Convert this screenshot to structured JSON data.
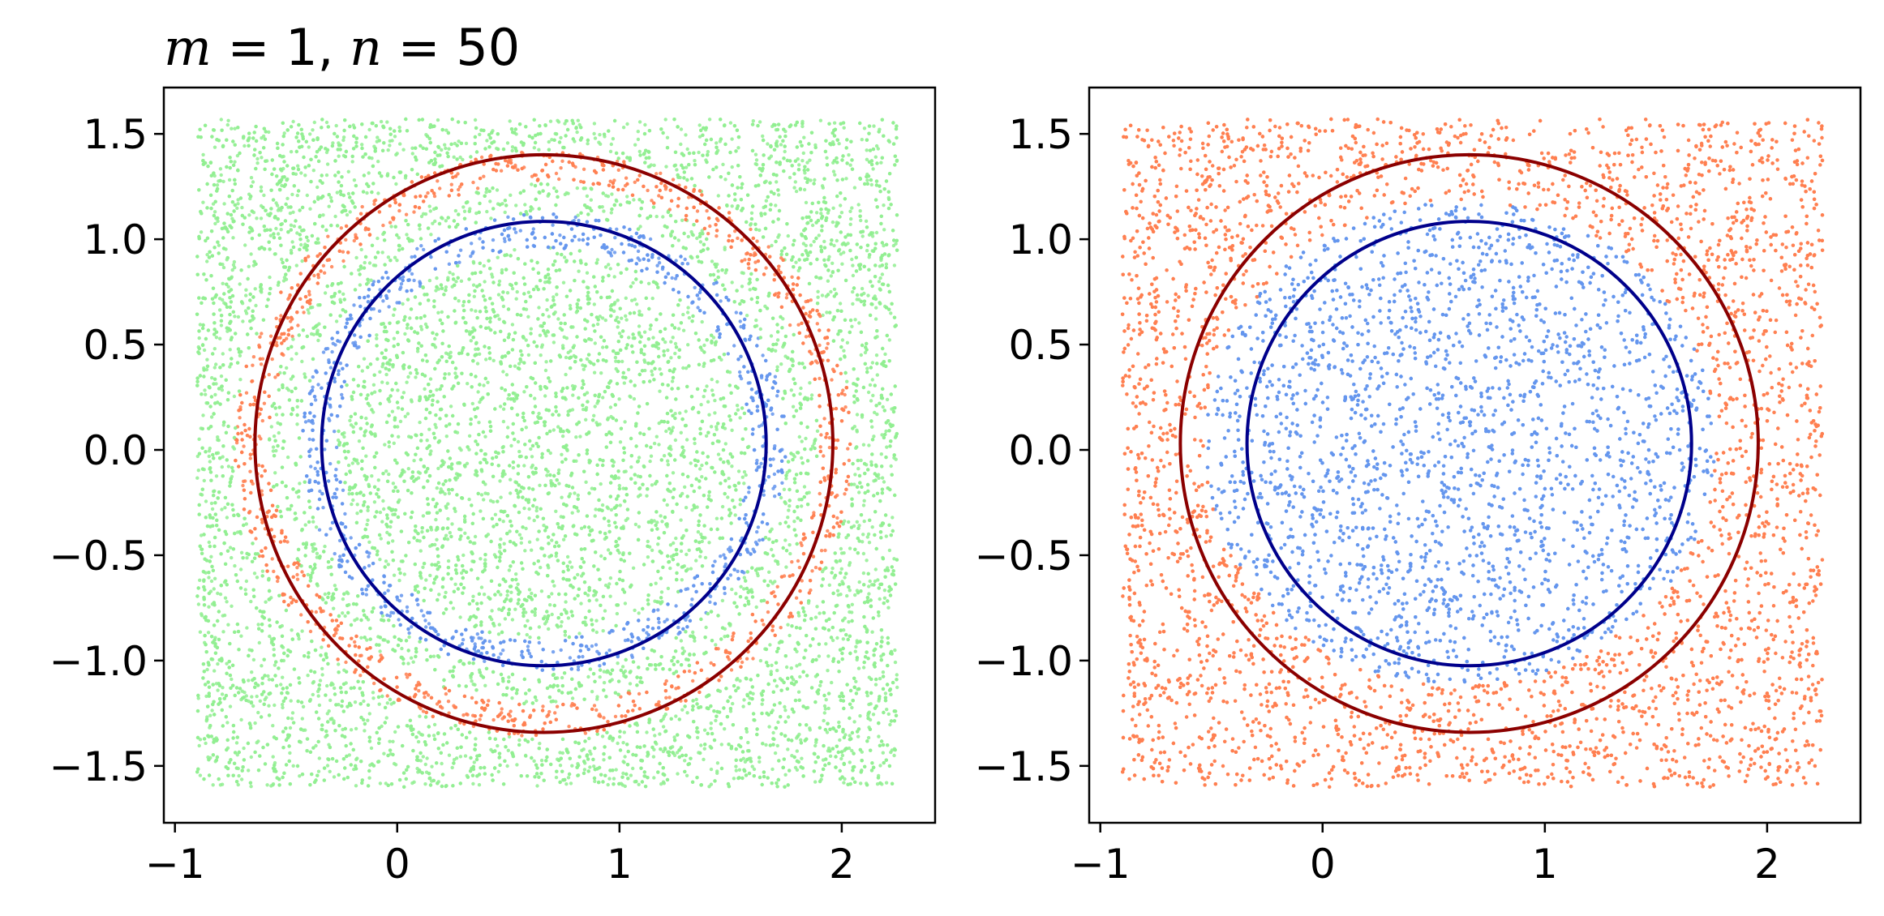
{
  "chart_data": [
    {
      "type": "scatter",
      "title": "m = 1, n = 50",
      "title_parts": {
        "m_var": "m",
        "m_val": " = 1, ",
        "n_var": "n",
        "n_val": " = 50"
      },
      "xlim": [
        -1.05,
        2.42
      ],
      "ylim": [
        -1.77,
        1.72
      ],
      "xticks": [
        -1,
        0,
        1,
        2
      ],
      "xtick_labels": [
        "−1",
        "0",
        "1",
        "2"
      ],
      "yticks": [
        1.5,
        1.0,
        0.5,
        0.0,
        -0.5,
        -1.0,
        -1.5
      ],
      "ytick_labels": [
        "1.5",
        "1.0",
        "0.5",
        "0.0",
        "−0.5",
        "−1.0",
        "−1.5"
      ],
      "point_domain": {
        "x": [
          -0.9,
          2.25
        ],
        "y": [
          -1.6,
          1.57
        ]
      },
      "regions": [
        {
          "class": "outside",
          "color": "#90ee90",
          "rule": "default"
        },
        {
          "class": "outer-ring",
          "color": "#ff7f50",
          "center": [
            0.66,
            0.03
          ],
          "r_inner": 1.24,
          "r_outer": 1.39
        },
        {
          "class": "inner-ring",
          "color": "#6495ed",
          "center": [
            0.66,
            0.03
          ],
          "r_inner": 0.93,
          "r_outer": 1.09
        }
      ],
      "circles": [
        {
          "name": "outer",
          "center": [
            0.66,
            0.03
          ],
          "radius": 1.3,
          "color": "#8b0000"
        },
        {
          "name": "inner",
          "center": [
            0.66,
            0.03
          ],
          "radius": 1.0,
          "color": "#00008b"
        }
      ]
    },
    {
      "type": "scatter",
      "xlim": [
        -1.05,
        2.42
      ],
      "ylim": [
        -1.77,
        1.72
      ],
      "xticks": [
        -1,
        0,
        1,
        2
      ],
      "xtick_labels": [
        "−1",
        "0",
        "1",
        "2"
      ],
      "yticks": [
        1.5,
        1.0,
        0.5,
        0.0,
        -0.5,
        -1.0,
        -1.5
      ],
      "ytick_labels": [
        "1.5",
        "1.0",
        "0.5",
        "0.0",
        "−0.5",
        "−1.0",
        "−1.5"
      ],
      "point_domain": {
        "x": [
          -0.9,
          2.25
        ],
        "y": [
          -1.6,
          1.57
        ]
      },
      "regions": [
        {
          "class": "outside",
          "color": "#ff7f50",
          "rule": "default"
        },
        {
          "class": "inside",
          "color": "#6495ed",
          "center": [
            0.62,
            0.03
          ],
          "r_inner": 0,
          "r_outer": 1.15
        }
      ],
      "circles": [
        {
          "name": "outer",
          "center": [
            0.66,
            0.03
          ],
          "radius": 1.3,
          "color": "#8b0000"
        },
        {
          "name": "inner",
          "center": [
            0.66,
            0.03
          ],
          "radius": 1.0,
          "color": "#00008b"
        }
      ]
    }
  ]
}
